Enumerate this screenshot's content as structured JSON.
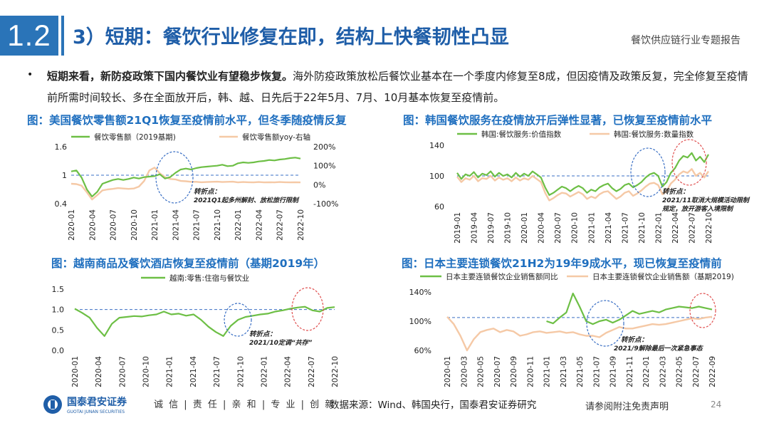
{
  "header": {
    "section_no": "1.2",
    "title": "3）短期：餐饮行业修复在即，结构上快餐韧性凸显",
    "report_name": "餐饮供应链行业专题报告"
  },
  "summary": {
    "bullet": "•",
    "bold": "短期来看，新防疫政策下国内餐饮业有望稳步恢复。",
    "text": "海外防疫政策放松后餐饮业基本在一个季度内修复至8成，但因疫情及政策反复，完全修复至疫情前所需时间较长、多在全面放开后，韩、越、日先后于22年5月、7月、10月基本恢复至疫情前。"
  },
  "colors": {
    "green": "#6dbf45",
    "orange": "#f5c9a6",
    "blue": "#2a74b8",
    "dashed": "#3a6fc4",
    "red": "#e05050"
  },
  "chart_data": [
    {
      "id": "us",
      "type": "line",
      "title": "图：美国餐饮零售额21Q1恢复至疫情前水平，但冬季随疫情反复",
      "legend": [
        "餐饮零售额（2019基期)",
        "餐饮零售额yoy-右轴"
      ],
      "x_labels": [
        "2020-01",
        "2020-04",
        "2020-07",
        "2020-10",
        "2021-01",
        "2021-04",
        "2021-07",
        "2021-10",
        "2022-01",
        "2022-04",
        "2022-07",
        "2022-10"
      ],
      "y_left_ticks": [
        "1.6",
        "1",
        "0.4"
      ],
      "y_right_ticks": [
        "200%",
        "100%",
        "0%",
        "-100%"
      ],
      "ylim_left": [
        0.4,
        1.6
      ],
      "ylim_right": [
        -100,
        200
      ],
      "reference": 1,
      "annotation": {
        "title": "转折点：",
        "text": "2021Q1起多州解封、放松旅行限制"
      },
      "series": [
        {
          "name": "餐饮零售额（2019基期)",
          "axis": "left",
          "values": [
            1.08,
            1.1,
            0.95,
            0.7,
            0.55,
            0.65,
            0.82,
            0.86,
            0.9,
            0.92,
            0.9,
            0.92,
            0.95,
            0.93,
            0.96,
            0.97,
            0.98,
            1.02,
            0.93,
            0.96,
            1.05,
            1.12,
            1.14,
            1.12,
            1.15,
            1.17,
            1.18,
            1.19,
            1.2,
            1.22,
            1.19,
            1.2,
            1.25,
            1.27,
            1.26,
            1.27,
            1.29,
            1.3,
            1.32,
            1.31,
            1.33,
            1.34,
            1.36,
            1.37,
            1.35
          ]
        },
        {
          "name": "餐饮零售额yoy-右轴",
          "axis": "right",
          "values": [
            5,
            3,
            -5,
            -40,
            -78,
            -55,
            -30,
            -25,
            -22,
            -18,
            -20,
            -22,
            -20,
            -10,
            20,
            75,
            90,
            60,
            40,
            30,
            28,
            20,
            18,
            15,
            15,
            13,
            14,
            15,
            16,
            14,
            15,
            16,
            12,
            14,
            13,
            12,
            14,
            12,
            13,
            12,
            14,
            13,
            12,
            13,
            12
          ]
        }
      ]
    },
    {
      "id": "kr",
      "type": "line",
      "title": "图：韩国餐饮服务在疫情放开后弹性显著，已恢复至疫情前水平",
      "legend": [
        "韩国:餐饮服务:价值指数",
        "韩国:餐饮服务:数量指数"
      ],
      "x_labels": [
        "2019-01",
        "2019-04",
        "2019-07",
        "2019-10",
        "2020-01",
        "2020-04",
        "2020-07",
        "2020-10",
        "2021-01",
        "2021-04",
        "2021-07",
        "2021-10",
        "2022-01",
        "2022-04",
        "2022-07",
        "2022-10"
      ],
      "y_left_ticks": [
        "140",
        "100",
        "60"
      ],
      "ylim_left": [
        60,
        140
      ],
      "reference": 100,
      "annotation": {
        "title": "转折点：",
        "text": "2021/11取消大规模活动限制规定，放开游客入境限制"
      },
      "series": [
        {
          "name": "韩国:餐饮服务:价值指数",
          "axis": "left",
          "values": [
            104,
            96,
            102,
            100,
            105,
            98,
            103,
            101,
            106,
            99,
            104,
            100,
            102,
            98,
            104,
            99,
            103,
            100,
            106,
            102,
            98,
            85,
            75,
            78,
            82,
            86,
            84,
            80,
            84,
            87,
            84,
            78,
            82,
            80,
            85,
            88,
            90,
            84,
            80,
            83,
            88,
            90,
            85,
            88,
            92,
            98,
            102,
            104,
            100,
            86,
            92,
            104,
            110,
            120,
            126,
            124,
            130,
            120,
            125,
            118,
            128
          ]
        },
        {
          "name": "韩国:餐饮服务:数量指数",
          "axis": "left",
          "values": [
            99,
            92,
            97,
            95,
            100,
            93,
            97,
            96,
            100,
            94,
            98,
            95,
            97,
            93,
            98,
            94,
            97,
            95,
            100,
            96,
            92,
            78,
            68,
            71,
            75,
            78,
            77,
            73,
            76,
            79,
            76,
            70,
            73,
            71,
            76,
            79,
            80,
            75,
            70,
            73,
            78,
            80,
            74,
            77,
            81,
            86,
            90,
            91,
            88,
            76,
            80,
            90,
            95,
            102,
            106,
            104,
            109,
            100,
            104,
            98,
            106
          ]
        }
      ]
    },
    {
      "id": "vn",
      "type": "line",
      "title": "图：越南商品及餐饮酒店恢复至疫情前（基期2019年）",
      "legend": [
        "越南:零售:住宿与餐饮业"
      ],
      "x_labels": [
        "2020-01",
        "2020-04",
        "2020-07",
        "2020-10",
        "2021-01",
        "2021-04",
        "2021-07",
        "2021-10",
        "2022-01",
        "2022-04",
        "2022-07",
        "2022-10"
      ],
      "y_left_ticks": [
        "1.5",
        "1.0",
        "0.5",
        "0.0"
      ],
      "ylim_left": [
        0,
        1.5
      ],
      "reference": 1.0,
      "annotation": {
        "title": "转折点：",
        "text": "2021/10定调“共存”"
      },
      "series": [
        {
          "name": "越南:零售:住宿与餐饮业",
          "axis": "left",
          "values": [
            1.02,
            0.92,
            0.8,
            0.55,
            0.35,
            0.65,
            0.8,
            0.82,
            0.84,
            0.83,
            0.86,
            0.88,
            0.95,
            0.88,
            0.9,
            0.85,
            0.88,
            0.75,
            0.58,
            0.45,
            0.35,
            0.6,
            0.75,
            0.82,
            0.85,
            0.88,
            0.9,
            0.95,
            0.98,
            1.02,
            1.05,
            1.07,
            0.98,
            0.95,
            1.04,
            1.06
          ]
        }
      ]
    },
    {
      "id": "jp",
      "type": "line",
      "title": "图：日本主要连锁餐饮21H2为19年9成水平，现已恢复至疫情前",
      "legend": [
        "日本主要连锁餐饮企业销售额同比",
        "日本主要连锁餐饮企业销售额（基期2019)"
      ],
      "x_labels": [
        "2020-01",
        "2020-03",
        "2020-05",
        "2020-07",
        "2020-09",
        "2020-11",
        "2021-01",
        "2021-03",
        "2021-05",
        "2021-07",
        "2021-09",
        "2021-11",
        "2022-01",
        "2022-03",
        "2022-05",
        "2022-07",
        "2022-09"
      ],
      "y_left_ticks": [
        "140%",
        "100%",
        "60%"
      ],
      "ylim_left": [
        60,
        140
      ],
      "reference": 105,
      "annotation": {
        "title": "转折点：",
        "text": "2021/9解除最后一次紧急事态"
      },
      "series": [
        {
          "name": "日本主要连锁餐饮企业销售额同比",
          "axis": "left",
          "values": [
            null,
            null,
            null,
            null,
            null,
            null,
            null,
            null,
            null,
            null,
            null,
            null,
            null,
            null,
            null,
            100,
            97,
            105,
            112,
            138,
            120,
            100,
            96,
            100,
            102,
            98,
            102,
            108,
            114,
            110,
            112,
            114,
            112,
            116,
            118,
            120,
            119,
            118,
            120,
            118,
            116
          ]
        },
        {
          "name": "日本主要连锁餐饮企业销售额（基期2019)",
          "axis": "left",
          "values": [
            106,
            96,
            80,
            60,
            75,
            85,
            88,
            90,
            85,
            88,
            86,
            80,
            82,
            85,
            86,
            84,
            85,
            86,
            84,
            85,
            82,
            80,
            80,
            78,
            84,
            88,
            92,
            90,
            90,
            92,
            94,
            96,
            95,
            96,
            98,
            100,
            102,
            104,
            103,
            105,
            106
          ]
        }
      ]
    }
  ],
  "footer": {
    "logo_cn": "国泰君安证券",
    "logo_en": "GUOTAI JUNAN SECURITIES",
    "slogan": "诚 信 | 责 任 | 亲 和 | 专 业 | 创 新",
    "source": "数据来源：Wind、韩国央行，国泰君安证券研究",
    "disclaimer": "请参阅附注免责声明",
    "page": "24"
  }
}
